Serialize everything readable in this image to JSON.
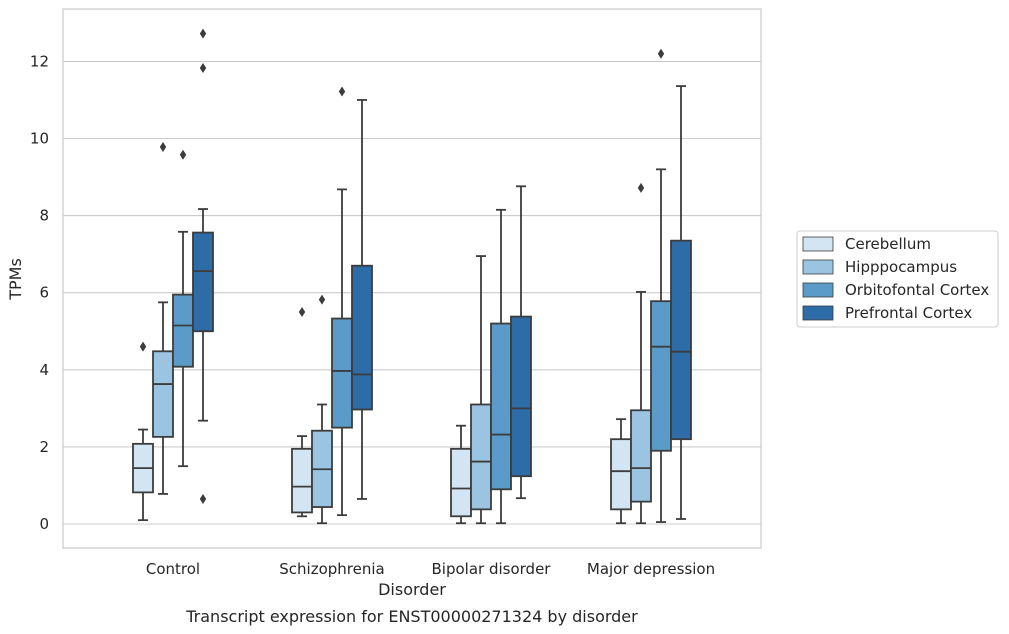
{
  "chart_data": {
    "type": "box",
    "caption": "Transcript expression for ENST00000271324 by disorder",
    "xlabel": "Disorder",
    "ylabel": "TPMs",
    "ylim": [
      -0.6,
      13.4
    ],
    "yticks": [
      0,
      2,
      4,
      6,
      8,
      10,
      12
    ],
    "grid": "horizontal",
    "legend_position": "right",
    "categories": [
      "Control",
      "Schizophrenia",
      "Bipolar disorder",
      "Major depression"
    ],
    "series": [
      {
        "name": "Cerebellum",
        "color": "#d3e4f3",
        "boxes": [
          {
            "whislo": 0.1,
            "q1": 0.82,
            "med": 1.45,
            "q3": 2.08,
            "whishi": 2.45,
            "fliers": [
              4.6
            ]
          },
          {
            "whislo": 0.2,
            "q1": 0.3,
            "med": 0.97,
            "q3": 1.95,
            "whishi": 2.28,
            "fliers": [
              5.5
            ]
          },
          {
            "whislo": 0.02,
            "q1": 0.2,
            "med": 0.92,
            "q3": 1.95,
            "whishi": 2.55,
            "fliers": []
          },
          {
            "whislo": 0.02,
            "q1": 0.38,
            "med": 1.37,
            "q3": 2.2,
            "whishi": 2.72,
            "fliers": []
          }
        ]
      },
      {
        "name": "Hipppocampus",
        "color": "#9ac4e1",
        "boxes": [
          {
            "whislo": 0.78,
            "q1": 2.26,
            "med": 3.63,
            "q3": 4.48,
            "whishi": 5.75,
            "fliers": [
              9.78
            ]
          },
          {
            "whislo": 0.02,
            "q1": 0.44,
            "med": 1.42,
            "q3": 2.42,
            "whishi": 3.1,
            "fliers": [
              5.82
            ]
          },
          {
            "whislo": 0.02,
            "q1": 0.38,
            "med": 1.62,
            "q3": 3.1,
            "whishi": 6.95,
            "fliers": []
          },
          {
            "whislo": 0.02,
            "q1": 0.58,
            "med": 1.45,
            "q3": 2.95,
            "whishi": 6.02,
            "fliers": [
              8.72
            ]
          }
        ]
      },
      {
        "name": "Orbitofontal Cortex",
        "color": "#5a9bc9",
        "boxes": [
          {
            "whislo": 1.5,
            "q1": 4.08,
            "med": 5.15,
            "q3": 5.95,
            "whishi": 7.58,
            "fliers": [
              9.58
            ]
          },
          {
            "whislo": 0.23,
            "q1": 2.5,
            "med": 3.97,
            "q3": 5.33,
            "whishi": 8.68,
            "fliers": [
              11.22
            ]
          },
          {
            "whislo": 0.02,
            "q1": 0.9,
            "med": 2.32,
            "q3": 5.2,
            "whishi": 8.15,
            "fliers": []
          },
          {
            "whislo": 0.05,
            "q1": 1.9,
            "med": 4.6,
            "q3": 5.78,
            "whishi": 9.2,
            "fliers": [
              12.2
            ]
          }
        ]
      },
      {
        "name": "Prefrontal Cortex",
        "color": "#2e6ca8",
        "boxes": [
          {
            "whislo": 2.68,
            "q1": 5.0,
            "med": 6.56,
            "q3": 7.56,
            "whishi": 8.17,
            "fliers": [
              0.65,
              11.83,
              12.72
            ]
          },
          {
            "whislo": 0.65,
            "q1": 2.97,
            "med": 3.88,
            "q3": 6.7,
            "whishi": 11.0,
            "fliers": []
          },
          {
            "whislo": 0.67,
            "q1": 1.24,
            "med": 3.0,
            "q3": 5.38,
            "whishi": 8.76,
            "fliers": []
          },
          {
            "whislo": 0.13,
            "q1": 2.2,
            "med": 4.47,
            "q3": 7.35,
            "whishi": 11.36,
            "fliers": []
          }
        ]
      }
    ]
  }
}
